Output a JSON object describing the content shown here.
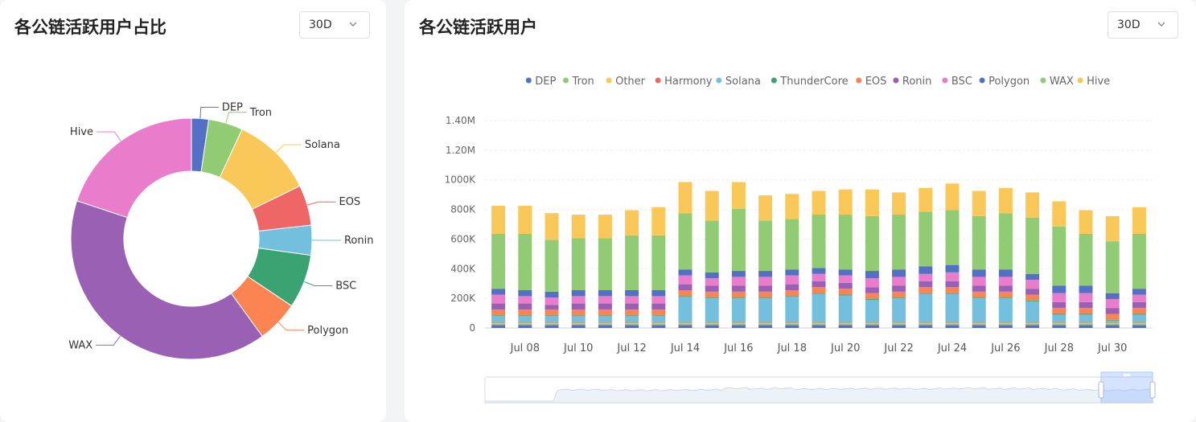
{
  "left_panel": {
    "title": "各公链活跃用户占比",
    "period": "30D"
  },
  "right_panel": {
    "title": "各公链活跃用户",
    "period": "30D"
  },
  "chart_data": [
    {
      "type": "pie",
      "variant": "donut",
      "slices": [
        {
          "name": "DEP",
          "value": 2.3,
          "color": "#5470c6"
        },
        {
          "name": "Tron",
          "value": 4.6,
          "color": "#91cc75"
        },
        {
          "name": "Solana",
          "value": 10.9,
          "color": "#fac858"
        },
        {
          "name": "EOS",
          "value": 5.4,
          "color": "#ee6666"
        },
        {
          "name": "Ronin",
          "value": 4.0,
          "color": "#73c0de"
        },
        {
          "name": "BSC",
          "value": 7.2,
          "color": "#3ba272"
        },
        {
          "name": "Polygon",
          "value": 5.6,
          "color": "#fc8452"
        },
        {
          "name": "WAX",
          "value": 40.1,
          "color": "#9a60b4"
        },
        {
          "name": "Hive",
          "value": 19.9,
          "color": "#ea7ccc"
        }
      ]
    },
    {
      "type": "bar",
      "stacked": true,
      "legend_position": "top",
      "legend": [
        {
          "name": "DEP",
          "color": "#5470c6"
        },
        {
          "name": "Tron",
          "color": "#91cc75"
        },
        {
          "name": "Other",
          "color": "#fac858"
        },
        {
          "name": "Harmony",
          "color": "#ee6666"
        },
        {
          "name": "Solana",
          "color": "#73c0de"
        },
        {
          "name": "ThunderCore",
          "color": "#3ba272"
        },
        {
          "name": "EOS",
          "color": "#fc8452"
        },
        {
          "name": "Ronin",
          "color": "#9a60b4"
        },
        {
          "name": "BSC",
          "color": "#ea7ccc"
        },
        {
          "name": "Polygon",
          "color": "#5470c6"
        },
        {
          "name": "WAX",
          "color": "#91cc75"
        },
        {
          "name": "Hive",
          "color": "#fac858"
        }
      ],
      "categories": [
        "Jul 07",
        "Jul 08",
        "Jul 09",
        "Jul 10",
        "Jul 11",
        "Jul 12",
        "Jul 13",
        "Jul 14",
        "Jul 15",
        "Jul 16",
        "Jul 17",
        "Jul 18",
        "Jul 19",
        "Jul 20",
        "Jul 21",
        "Jul 22",
        "Jul 23",
        "Jul 24",
        "Jul 25",
        "Jul 26",
        "Jul 27",
        "Jul 28",
        "Jul 29",
        "Jul 30",
        "Jul 31"
      ],
      "x_tick_labels": [
        "Jul 08",
        "Jul 10",
        "Jul 12",
        "Jul 14",
        "Jul 16",
        "Jul 18",
        "Jul 20",
        "Jul 22",
        "Jul 24",
        "Jul 26",
        "Jul 28",
        "Jul 30"
      ],
      "y_ticks": [
        "0",
        "200K",
        "400K",
        "600K",
        "800K",
        "1000K",
        "1.20M",
        "1.40M"
      ],
      "ylim": [
        0,
        1400000
      ],
      "grid": true,
      "series": [
        {
          "name": "DEP",
          "color": "#5470c6",
          "values": [
            20000,
            20000,
            20000,
            20000,
            20000,
            20000,
            20000,
            20000,
            20000,
            20000,
            20000,
            20000,
            20000,
            20000,
            20000,
            20000,
            20000,
            20000,
            20000,
            20000,
            20000,
            20000,
            20000,
            20000,
            20000
          ]
        },
        {
          "name": "Tron",
          "color": "#91cc75",
          "values": [
            10000,
            10000,
            10000,
            10000,
            10000,
            10000,
            10000,
            10000,
            10000,
            10000,
            10000,
            10000,
            10000,
            10000,
            10000,
            10000,
            10000,
            10000,
            10000,
            10000,
            10000,
            10000,
            10000,
            10000,
            10000
          ]
        },
        {
          "name": "Other",
          "color": "#fac858",
          "values": [
            5000,
            5000,
            5000,
            5000,
            5000,
            5000,
            5000,
            5000,
            5000,
            5000,
            5000,
            5000,
            5000,
            5000,
            5000,
            5000,
            5000,
            5000,
            5000,
            5000,
            5000,
            5000,
            5000,
            5000,
            5000
          ]
        },
        {
          "name": "Harmony",
          "color": "#ee6666",
          "values": [
            5000,
            5000,
            5000,
            5000,
            5000,
            5000,
            5000,
            5000,
            5000,
            5000,
            5000,
            5000,
            5000,
            5000,
            5000,
            5000,
            5000,
            5000,
            5000,
            5000,
            5000,
            5000,
            5000,
            5000,
            5000
          ]
        },
        {
          "name": "Solana",
          "color": "#73c0de",
          "values": [
            40000,
            40000,
            40000,
            40000,
            40000,
            40000,
            40000,
            170000,
            160000,
            160000,
            160000,
            170000,
            190000,
            180000,
            150000,
            160000,
            190000,
            190000,
            160000,
            160000,
            140000,
            50000,
            50000,
            10000,
            50000
          ]
        },
        {
          "name": "ThunderCore",
          "color": "#3ba272",
          "values": [
            5000,
            5000,
            5000,
            5000,
            5000,
            5000,
            5000,
            5000,
            5000,
            5000,
            5000,
            5000,
            5000,
            5000,
            5000,
            5000,
            5000,
            5000,
            5000,
            5000,
            5000,
            5000,
            5000,
            5000,
            5000
          ]
        },
        {
          "name": "EOS",
          "color": "#fc8452",
          "values": [
            40000,
            40000,
            40000,
            40000,
            40000,
            40000,
            40000,
            40000,
            40000,
            40000,
            40000,
            40000,
            40000,
            40000,
            40000,
            40000,
            40000,
            40000,
            40000,
            40000,
            40000,
            40000,
            40000,
            40000,
            40000
          ]
        },
        {
          "name": "Ronin",
          "color": "#9a60b4",
          "values": [
            40000,
            40000,
            30000,
            40000,
            40000,
            40000,
            40000,
            40000,
            40000,
            40000,
            40000,
            40000,
            40000,
            40000,
            40000,
            40000,
            40000,
            40000,
            40000,
            40000,
            40000,
            40000,
            40000,
            40000,
            40000
          ]
        },
        {
          "name": "BSC",
          "color": "#ea7ccc",
          "values": [
            60000,
            50000,
            50000,
            50000,
            50000,
            50000,
            50000,
            60000,
            50000,
            60000,
            60000,
            60000,
            50000,
            50000,
            60000,
            60000,
            50000,
            60000,
            60000,
            60000,
            60000,
            60000,
            60000,
            60000,
            50000
          ]
        },
        {
          "name": "Polygon",
          "color": "#5470c6",
          "values": [
            40000,
            40000,
            40000,
            40000,
            40000,
            40000,
            40000,
            40000,
            40000,
            40000,
            40000,
            40000,
            40000,
            40000,
            50000,
            50000,
            50000,
            50000,
            50000,
            50000,
            40000,
            50000,
            50000,
            40000,
            40000
          ]
        },
        {
          "name": "WAX",
          "color": "#91cc75",
          "values": [
            370000,
            380000,
            350000,
            350000,
            350000,
            370000,
            370000,
            380000,
            350000,
            420000,
            340000,
            340000,
            360000,
            370000,
            370000,
            370000,
            370000,
            370000,
            360000,
            380000,
            380000,
            400000,
            350000,
            350000,
            370000
          ]
        },
        {
          "name": "Hive",
          "color": "#fac858",
          "values": [
            190000,
            190000,
            180000,
            160000,
            160000,
            170000,
            190000,
            210000,
            200000,
            180000,
            170000,
            170000,
            160000,
            170000,
            180000,
            150000,
            160000,
            180000,
            170000,
            170000,
            170000,
            170000,
            160000,
            170000,
            180000
          ]
        }
      ]
    }
  ]
}
